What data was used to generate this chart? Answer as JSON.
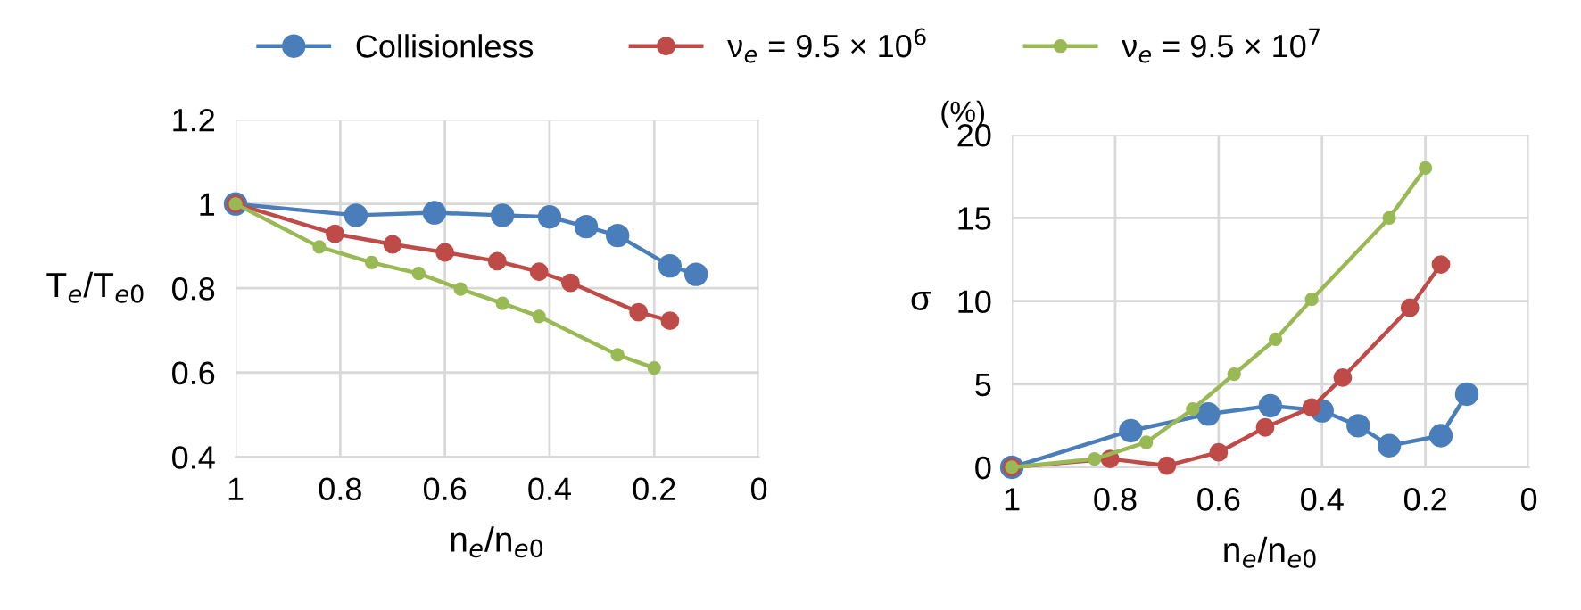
{
  "chart_data": [
    {
      "type": "line",
      "xlabel": "n$_{e}$/n$_{e0}$",
      "ylabel": "T$_{e}$/T$_{e0}$",
      "xlim": [
        1,
        0
      ],
      "xticks": [
        1,
        0.8,
        0.6,
        0.4,
        0.2,
        0
      ],
      "ylim": [
        0.4,
        1.2
      ],
      "yticks": [
        0.4,
        0.6,
        0.8,
        1,
        1.2
      ],
      "grid": true,
      "marker": "circle",
      "legend": "top",
      "series": [
        {
          "name": "Collisionless",
          "color": "#4a7ebb",
          "x": [
            1,
            0.77,
            0.62,
            0.49,
            0.4,
            0.33,
            0.27,
            0.17,
            0.12
          ],
          "values": [
            1,
            0.973,
            0.979,
            0.973,
            0.969,
            0.946,
            0.925,
            0.853,
            0.833
          ]
        },
        {
          "name": "ν$_{e}$ = 9.5 × 10$^{6}$",
          "color": "#be4b48",
          "x": [
            1,
            0.81,
            0.7,
            0.6,
            0.5,
            0.42,
            0.36,
            0.23,
            0.17
          ],
          "values": [
            1,
            0.929,
            0.904,
            0.885,
            0.864,
            0.839,
            0.813,
            0.743,
            0.723
          ]
        },
        {
          "name": "ν$_{e}$ = 9.5 × 10$^{7}$",
          "color": "#98b954",
          "x": [
            1,
            0.84,
            0.74,
            0.65,
            0.57,
            0.49,
            0.42,
            0.27,
            0.2
          ],
          "values": [
            1,
            0.898,
            0.861,
            0.835,
            0.798,
            0.764,
            0.733,
            0.642,
            0.611
          ]
        }
      ]
    },
    {
      "type": "line",
      "xlabel": "n$_{e}$/n$_{e0}$",
      "ylabel": "σ",
      "annotations": [
        "(%)"
      ],
      "xlim": [
        1,
        0
      ],
      "xticks": [
        1,
        0.8,
        0.6,
        0.4,
        0.2,
        0
      ],
      "ylim": [
        0,
        20
      ],
      "yticks": [
        0,
        5,
        10,
        15,
        20
      ],
      "grid": true,
      "marker": "circle",
      "series": [
        {
          "color": "#4a7ebb",
          "x": [
            1,
            0.77,
            0.62,
            0.5,
            0.4,
            0.33,
            0.27,
            0.17,
            0.12
          ],
          "values": [
            0,
            2.2,
            3.2,
            3.7,
            3.4,
            2.5,
            1.3,
            1.9,
            4.4
          ]
        },
        {
          "color": "#be4b48",
          "x": [
            1,
            0.81,
            0.7,
            0.6,
            0.51,
            0.42,
            0.36,
            0.23,
            0.17
          ],
          "values": [
            0,
            0.5,
            0.1,
            0.9,
            2.4,
            3.6,
            5.4,
            9.6,
            12.2
          ]
        },
        {
          "color": "#98b954",
          "x": [
            1,
            0.84,
            0.74,
            0.65,
            0.57,
            0.49,
            0.42,
            0.27,
            0.2
          ],
          "values": [
            0,
            0.5,
            1.5,
            3.5,
            5.6,
            7.7,
            10.1,
            15,
            18
          ]
        }
      ]
    }
  ]
}
